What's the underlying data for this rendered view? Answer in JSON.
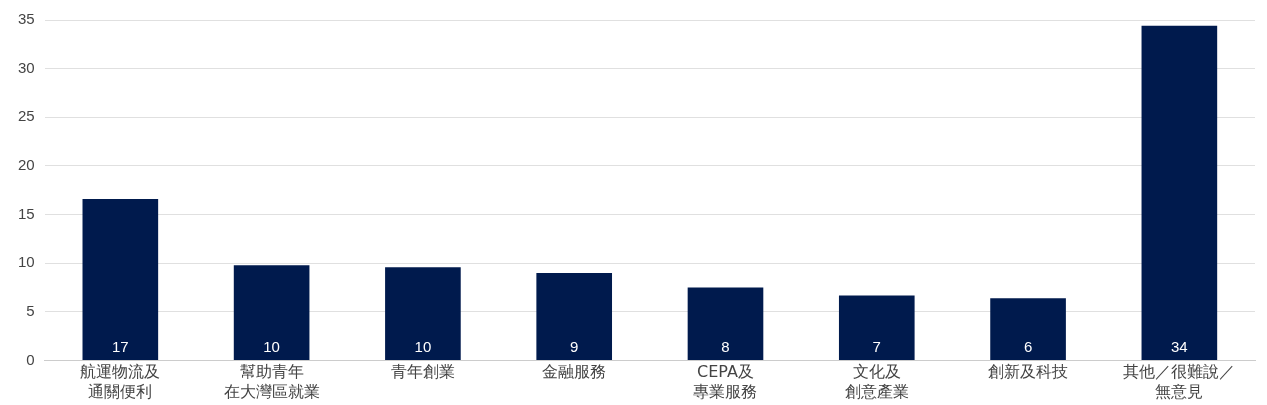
{
  "chart_data": {
    "type": "bar",
    "categories": [
      [
        "航運物流及",
        "通關便利"
      ],
      [
        "幫助青年",
        "在大灣區就業"
      ],
      [
        "青年創業"
      ],
      [
        "金融服務"
      ],
      [
        "CEPA及",
        "專業服務"
      ],
      [
        "文化及",
        "創意產業"
      ],
      [
        "創新及科技"
      ],
      [
        "其他／很難說／",
        "無意見"
      ]
    ],
    "values": [
      16.6,
      9.8,
      9.6,
      9.0,
      7.5,
      6.7,
      6.4,
      34.4
    ],
    "value_labels": [
      "17",
      "10",
      "10",
      "9",
      "8",
      "7",
      "6",
      "34"
    ],
    "color": "#001a4d",
    "ylim": [
      0,
      35
    ],
    "yticks": [
      0,
      5,
      10,
      15,
      20,
      25,
      30,
      35
    ],
    "grid": "y",
    "legend": false
  }
}
